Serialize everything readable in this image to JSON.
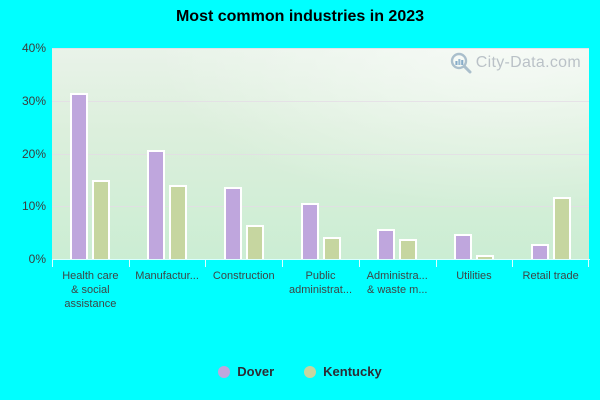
{
  "chart_data": {
    "type": "bar",
    "title": "Most common industries in 2023",
    "categories_display": [
      [
        "Health care",
        "& social",
        "assistance"
      ],
      [
        "Manufactur..."
      ],
      [
        "Construction"
      ],
      [
        "Public",
        "administrat..."
      ],
      [
        "Administra...",
        "& waste m..."
      ],
      [
        "Utilities"
      ],
      [
        "Retail trade"
      ]
    ],
    "series": [
      {
        "name": "Dover",
        "color": "#bfa6dd",
        "values": [
          31.4,
          20.6,
          13.6,
          10.7,
          5.7,
          4.8,
          2.9
        ]
      },
      {
        "name": "Kentucky",
        "color": "#c6d6a0",
        "values": [
          15.0,
          14.0,
          6.4,
          4.1,
          3.7,
          0.8,
          11.8
        ]
      }
    ],
    "xlabel": "",
    "ylabel": "",
    "ylim": [
      0,
      40
    ],
    "yticks": [
      "0%",
      "10%",
      "20%",
      "30%",
      "40%"
    ],
    "gridline_values": [
      10,
      20,
      30,
      40
    ],
    "grid": true,
    "legend_position": "bottom"
  },
  "watermark": {
    "text": "City-Data.com"
  },
  "colors": {
    "page_background": "#00ffff",
    "plot_gradient_top": "#e9f3e9",
    "plot_gradient_bottom": "#cbedd3",
    "gridline": "#e4dbe6",
    "dover_bar": "#bfa6dd",
    "kentucky_bar": "#c6d6a0",
    "watermark_text": "#b4bcc3"
  }
}
